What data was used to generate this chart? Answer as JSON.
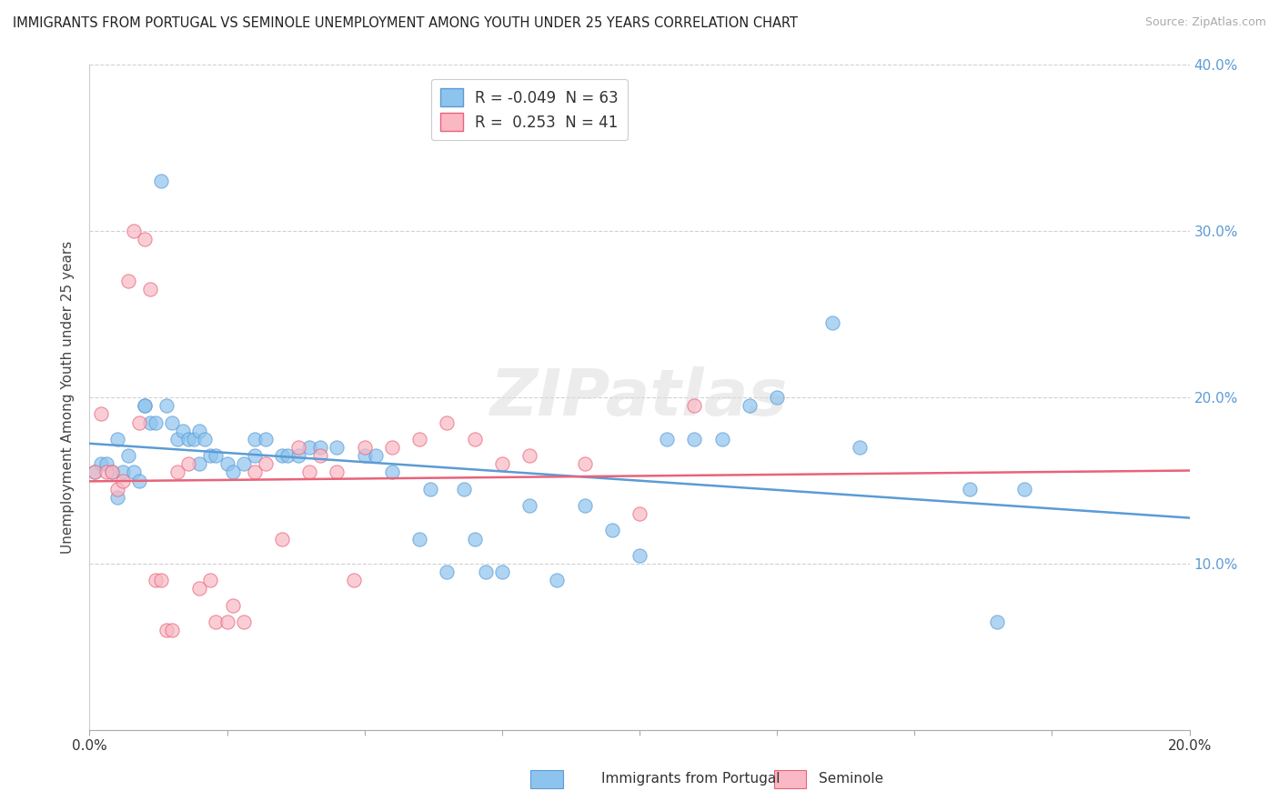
{
  "title": "IMMIGRANTS FROM PORTUGAL VS SEMINOLE UNEMPLOYMENT AMONG YOUTH UNDER 25 YEARS CORRELATION CHART",
  "source": "Source: ZipAtlas.com",
  "ylabel": "Unemployment Among Youth under 25 years",
  "legend_label1": "Immigrants from Portugal",
  "legend_label2": "Seminole",
  "R1": -0.049,
  "N1": 63,
  "R2": 0.253,
  "N2": 41,
  "xlim": [
    0.0,
    0.2
  ],
  "ylim": [
    0.0,
    0.4
  ],
  "xticks": [
    0.0,
    0.025,
    0.05,
    0.075,
    0.1,
    0.125,
    0.15,
    0.175,
    0.2
  ],
  "xtick_labels_show": [
    "0.0%",
    "",
    "",
    "",
    "",
    "",
    "",
    "",
    "20.0%"
  ],
  "yticks": [
    0.0,
    0.1,
    0.2,
    0.3,
    0.4
  ],
  "ytick_labels_right": [
    "",
    "10.0%",
    "20.0%",
    "30.0%",
    "40.0%"
  ],
  "color_blue": "#8DC4EE",
  "color_pink": "#F9B8C4",
  "trendline_blue": "#5B9BD5",
  "trendline_pink": "#E8637A",
  "right_axis_color": "#5B9BD5",
  "watermark": "ZIPatlas",
  "blue_scatter": [
    [
      0.001,
      0.155
    ],
    [
      0.002,
      0.16
    ],
    [
      0.003,
      0.16
    ],
    [
      0.004,
      0.155
    ],
    [
      0.005,
      0.14
    ],
    [
      0.005,
      0.175
    ],
    [
      0.006,
      0.155
    ],
    [
      0.007,
      0.165
    ],
    [
      0.008,
      0.155
    ],
    [
      0.009,
      0.15
    ],
    [
      0.01,
      0.195
    ],
    [
      0.01,
      0.195
    ],
    [
      0.011,
      0.185
    ],
    [
      0.012,
      0.185
    ],
    [
      0.013,
      0.33
    ],
    [
      0.014,
      0.195
    ],
    [
      0.015,
      0.185
    ],
    [
      0.016,
      0.175
    ],
    [
      0.017,
      0.18
    ],
    [
      0.018,
      0.175
    ],
    [
      0.019,
      0.175
    ],
    [
      0.02,
      0.16
    ],
    [
      0.02,
      0.18
    ],
    [
      0.021,
      0.175
    ],
    [
      0.022,
      0.165
    ],
    [
      0.023,
      0.165
    ],
    [
      0.025,
      0.16
    ],
    [
      0.026,
      0.155
    ],
    [
      0.028,
      0.16
    ],
    [
      0.03,
      0.175
    ],
    [
      0.03,
      0.165
    ],
    [
      0.032,
      0.175
    ],
    [
      0.035,
      0.165
    ],
    [
      0.036,
      0.165
    ],
    [
      0.038,
      0.165
    ],
    [
      0.04,
      0.17
    ],
    [
      0.042,
      0.17
    ],
    [
      0.045,
      0.17
    ],
    [
      0.05,
      0.165
    ],
    [
      0.052,
      0.165
    ],
    [
      0.055,
      0.155
    ],
    [
      0.06,
      0.115
    ],
    [
      0.062,
      0.145
    ],
    [
      0.065,
      0.095
    ],
    [
      0.068,
      0.145
    ],
    [
      0.07,
      0.115
    ],
    [
      0.072,
      0.095
    ],
    [
      0.075,
      0.095
    ],
    [
      0.08,
      0.135
    ],
    [
      0.085,
      0.09
    ],
    [
      0.09,
      0.135
    ],
    [
      0.095,
      0.12
    ],
    [
      0.1,
      0.105
    ],
    [
      0.105,
      0.175
    ],
    [
      0.11,
      0.175
    ],
    [
      0.115,
      0.175
    ],
    [
      0.12,
      0.195
    ],
    [
      0.125,
      0.2
    ],
    [
      0.135,
      0.245
    ],
    [
      0.14,
      0.17
    ],
    [
      0.16,
      0.145
    ],
    [
      0.165,
      0.065
    ],
    [
      0.17,
      0.145
    ]
  ],
  "pink_scatter": [
    [
      0.001,
      0.155
    ],
    [
      0.002,
      0.19
    ],
    [
      0.003,
      0.155
    ],
    [
      0.004,
      0.155
    ],
    [
      0.005,
      0.145
    ],
    [
      0.006,
      0.15
    ],
    [
      0.007,
      0.27
    ],
    [
      0.008,
      0.3
    ],
    [
      0.009,
      0.185
    ],
    [
      0.01,
      0.295
    ],
    [
      0.011,
      0.265
    ],
    [
      0.012,
      0.09
    ],
    [
      0.013,
      0.09
    ],
    [
      0.014,
      0.06
    ],
    [
      0.015,
      0.06
    ],
    [
      0.016,
      0.155
    ],
    [
      0.018,
      0.16
    ],
    [
      0.02,
      0.085
    ],
    [
      0.022,
      0.09
    ],
    [
      0.023,
      0.065
    ],
    [
      0.025,
      0.065
    ],
    [
      0.026,
      0.075
    ],
    [
      0.028,
      0.065
    ],
    [
      0.03,
      0.155
    ],
    [
      0.032,
      0.16
    ],
    [
      0.035,
      0.115
    ],
    [
      0.038,
      0.17
    ],
    [
      0.04,
      0.155
    ],
    [
      0.042,
      0.165
    ],
    [
      0.045,
      0.155
    ],
    [
      0.048,
      0.09
    ],
    [
      0.05,
      0.17
    ],
    [
      0.055,
      0.17
    ],
    [
      0.06,
      0.175
    ],
    [
      0.065,
      0.185
    ],
    [
      0.07,
      0.175
    ],
    [
      0.075,
      0.16
    ],
    [
      0.08,
      0.165
    ],
    [
      0.09,
      0.16
    ],
    [
      0.1,
      0.13
    ],
    [
      0.11,
      0.195
    ]
  ]
}
